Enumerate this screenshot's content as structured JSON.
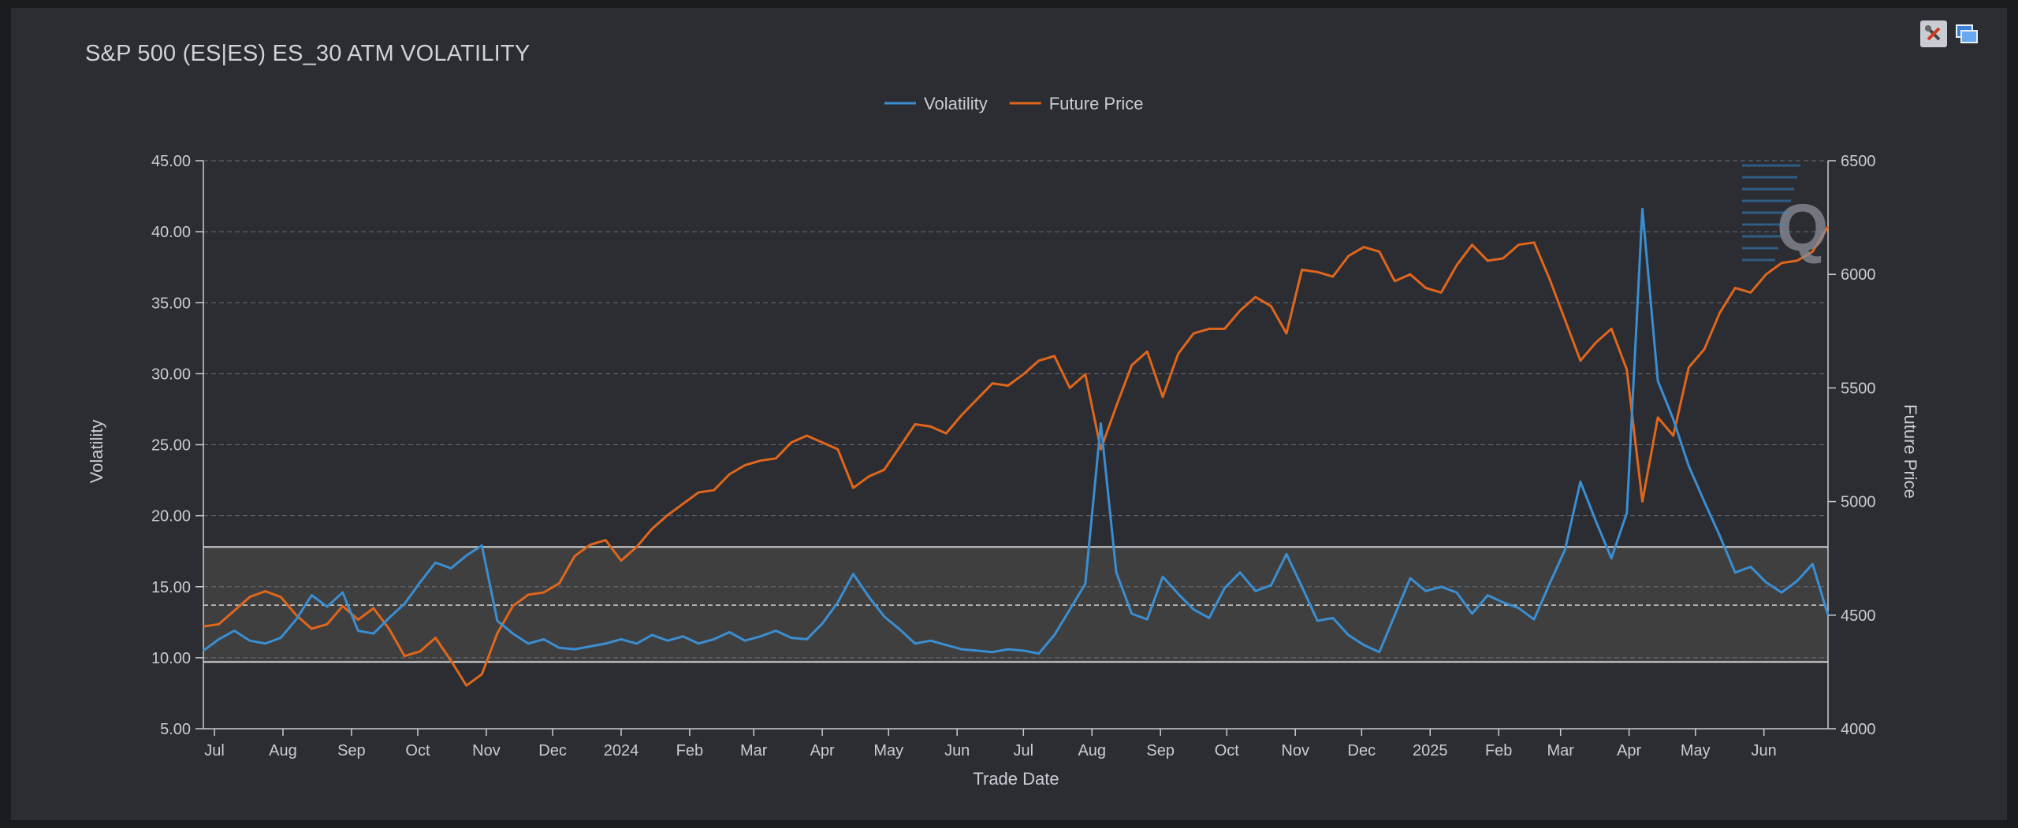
{
  "page": {
    "title": "S&P 500 (ES|ES) ES_30 ATM VOLATILITY"
  },
  "toolbar": {
    "settings_icon": "tools-icon",
    "window_icon": "window-icon"
  },
  "colors": {
    "volatility": "#3a8ed1",
    "future_price": "#e0661b",
    "band_fill": "#3f3f40",
    "grid": "#6a6e76",
    "text": "#c9ccd2"
  },
  "chart_data": {
    "type": "line",
    "title": "S&P 500 (ES|ES) ES_30 ATM VOLATILITY",
    "xlabel": "Trade Date",
    "ylabel": "Volatility",
    "y2label": "Future Price",
    "legend": {
      "position": "top-center",
      "entries": [
        "Volatility",
        "Future Price"
      ]
    },
    "grid": true,
    "x_range": [
      "2023-06-26",
      "2025-06-30"
    ],
    "ylim": [
      5,
      45
    ],
    "y2lim": [
      4000,
      6500
    ],
    "y_ticks": [
      "5.00",
      "10.00",
      "15.00",
      "20.00",
      "25.00",
      "30.00",
      "35.00",
      "40.00",
      "45.00"
    ],
    "y2_ticks": [
      "4000",
      "4500",
      "5000",
      "5500",
      "6000",
      "6500"
    ],
    "x_ticks": [
      {
        "label": "Jul",
        "date": "2023-07-01"
      },
      {
        "label": "Aug",
        "date": "2023-08-01"
      },
      {
        "label": "Sep",
        "date": "2023-09-01"
      },
      {
        "label": "Oct",
        "date": "2023-10-01"
      },
      {
        "label": "Nov",
        "date": "2023-11-01"
      },
      {
        "label": "Dec",
        "date": "2023-12-01"
      },
      {
        "label": "2024",
        "date": "2024-01-01"
      },
      {
        "label": "Feb",
        "date": "2024-02-01"
      },
      {
        "label": "Mar",
        "date": "2024-03-01"
      },
      {
        "label": "Apr",
        "date": "2024-04-01"
      },
      {
        "label": "May",
        "date": "2024-05-01"
      },
      {
        "label": "Jun",
        "date": "2024-06-01"
      },
      {
        "label": "Jul",
        "date": "2024-07-01"
      },
      {
        "label": "Aug",
        "date": "2024-08-01"
      },
      {
        "label": "Sep",
        "date": "2024-09-01"
      },
      {
        "label": "Oct",
        "date": "2024-10-01"
      },
      {
        "label": "Nov",
        "date": "2024-11-01"
      },
      {
        "label": "Dec",
        "date": "2024-12-01"
      },
      {
        "label": "2025",
        "date": "2025-01-01"
      },
      {
        "label": "Feb",
        "date": "2025-02-01"
      },
      {
        "label": "Mar",
        "date": "2025-03-01"
      },
      {
        "label": "Apr",
        "date": "2025-04-01"
      },
      {
        "label": "May",
        "date": "2025-05-01"
      },
      {
        "label": "Jun",
        "date": "2025-06-01"
      }
    ],
    "band": {
      "low": 9.7,
      "high": 17.8,
      "mid": 13.7
    },
    "series": [
      {
        "name": "Volatility",
        "axis": "left",
        "points": [
          [
            "2023-06-26",
            10.5
          ],
          [
            "2023-07-03",
            11.3
          ],
          [
            "2023-07-10",
            11.9
          ],
          [
            "2023-07-17",
            11.2
          ],
          [
            "2023-07-24",
            11.0
          ],
          [
            "2023-07-31",
            11.4
          ],
          [
            "2023-08-07",
            12.7
          ],
          [
            "2023-08-14",
            14.4
          ],
          [
            "2023-08-21",
            13.6
          ],
          [
            "2023-08-28",
            14.6
          ],
          [
            "2023-09-04",
            11.9
          ],
          [
            "2023-09-11",
            11.7
          ],
          [
            "2023-09-18",
            12.8
          ],
          [
            "2023-09-25",
            13.8
          ],
          [
            "2023-10-02",
            15.3
          ],
          [
            "2023-10-09",
            16.7
          ],
          [
            "2023-10-16",
            16.3
          ],
          [
            "2023-10-23",
            17.2
          ],
          [
            "2023-10-30",
            17.9
          ],
          [
            "2023-11-06",
            12.6
          ],
          [
            "2023-11-13",
            11.7
          ],
          [
            "2023-11-20",
            11.0
          ],
          [
            "2023-11-27",
            11.3
          ],
          [
            "2023-12-04",
            10.7
          ],
          [
            "2023-12-11",
            10.6
          ],
          [
            "2023-12-18",
            10.8
          ],
          [
            "2023-12-25",
            11.0
          ],
          [
            "2024-01-01",
            11.3
          ],
          [
            "2024-01-08",
            11.0
          ],
          [
            "2024-01-15",
            11.6
          ],
          [
            "2024-01-22",
            11.2
          ],
          [
            "2024-01-29",
            11.5
          ],
          [
            "2024-02-05",
            11.0
          ],
          [
            "2024-02-12",
            11.3
          ],
          [
            "2024-02-19",
            11.8
          ],
          [
            "2024-02-26",
            11.2
          ],
          [
            "2024-03-04",
            11.5
          ],
          [
            "2024-03-11",
            11.9
          ],
          [
            "2024-03-18",
            11.4
          ],
          [
            "2024-03-25",
            11.3
          ],
          [
            "2024-04-01",
            12.4
          ],
          [
            "2024-04-08",
            13.9
          ],
          [
            "2024-04-15",
            15.9
          ],
          [
            "2024-04-22",
            14.3
          ],
          [
            "2024-04-29",
            12.9
          ],
          [
            "2024-05-06",
            12.0
          ],
          [
            "2024-05-13",
            11.0
          ],
          [
            "2024-05-20",
            11.2
          ],
          [
            "2024-05-27",
            10.9
          ],
          [
            "2024-06-03",
            10.6
          ],
          [
            "2024-06-10",
            10.5
          ],
          [
            "2024-06-17",
            10.4
          ],
          [
            "2024-06-24",
            10.6
          ],
          [
            "2024-07-01",
            10.5
          ],
          [
            "2024-07-08",
            10.3
          ],
          [
            "2024-07-15",
            11.6
          ],
          [
            "2024-07-22",
            13.4
          ],
          [
            "2024-07-29",
            15.2
          ],
          [
            "2024-08-05",
            26.5
          ],
          [
            "2024-08-12",
            16.0
          ],
          [
            "2024-08-19",
            13.1
          ],
          [
            "2024-08-26",
            12.7
          ],
          [
            "2024-09-02",
            15.7
          ],
          [
            "2024-09-09",
            14.5
          ],
          [
            "2024-09-16",
            13.4
          ],
          [
            "2024-09-23",
            12.8
          ],
          [
            "2024-09-30",
            14.9
          ],
          [
            "2024-10-07",
            16.0
          ],
          [
            "2024-10-14",
            14.7
          ],
          [
            "2024-10-21",
            15.1
          ],
          [
            "2024-10-28",
            17.3
          ],
          [
            "2024-11-04",
            15.0
          ],
          [
            "2024-11-11",
            12.6
          ],
          [
            "2024-11-18",
            12.8
          ],
          [
            "2024-11-25",
            11.6
          ],
          [
            "2024-12-02",
            10.9
          ],
          [
            "2024-12-09",
            10.4
          ],
          [
            "2024-12-16",
            13.0
          ],
          [
            "2024-12-23",
            15.6
          ],
          [
            "2024-12-30",
            14.7
          ],
          [
            "2025-01-06",
            15.0
          ],
          [
            "2025-01-13",
            14.6
          ],
          [
            "2025-01-20",
            13.1
          ],
          [
            "2025-01-27",
            14.4
          ],
          [
            "2025-02-03",
            13.9
          ],
          [
            "2025-02-10",
            13.5
          ],
          [
            "2025-02-17",
            12.7
          ],
          [
            "2025-02-24",
            15.2
          ],
          [
            "2025-03-03",
            17.6
          ],
          [
            "2025-03-10",
            22.4
          ],
          [
            "2025-03-17",
            19.6
          ],
          [
            "2025-03-24",
            17.0
          ],
          [
            "2025-03-31",
            20.2
          ],
          [
            "2025-04-07",
            41.6
          ],
          [
            "2025-04-14",
            29.5
          ],
          [
            "2025-04-21",
            26.8
          ],
          [
            "2025-04-28",
            23.5
          ],
          [
            "2025-05-05",
            21.0
          ],
          [
            "2025-05-12",
            18.6
          ],
          [
            "2025-05-19",
            16.0
          ],
          [
            "2025-05-26",
            16.4
          ],
          [
            "2025-06-02",
            15.3
          ],
          [
            "2025-06-09",
            14.6
          ],
          [
            "2025-06-16",
            15.4
          ],
          [
            "2025-06-23",
            16.6
          ],
          [
            "2025-06-30",
            13.0
          ]
        ]
      },
      {
        "name": "Future Price",
        "axis": "right",
        "points": [
          [
            "2023-06-26",
            4450
          ],
          [
            "2023-07-03",
            4460
          ],
          [
            "2023-07-10",
            4520
          ],
          [
            "2023-07-17",
            4580
          ],
          [
            "2023-07-24",
            4605
          ],
          [
            "2023-07-31",
            4580
          ],
          [
            "2023-08-07",
            4500
          ],
          [
            "2023-08-14",
            4440
          ],
          [
            "2023-08-21",
            4460
          ],
          [
            "2023-08-28",
            4540
          ],
          [
            "2023-09-04",
            4480
          ],
          [
            "2023-09-11",
            4530
          ],
          [
            "2023-09-18",
            4440
          ],
          [
            "2023-09-25",
            4320
          ],
          [
            "2023-10-02",
            4340
          ],
          [
            "2023-10-09",
            4400
          ],
          [
            "2023-10-16",
            4300
          ],
          [
            "2023-10-23",
            4190
          ],
          [
            "2023-10-30",
            4240
          ],
          [
            "2023-11-06",
            4420
          ],
          [
            "2023-11-13",
            4540
          ],
          [
            "2023-11-20",
            4590
          ],
          [
            "2023-11-27",
            4600
          ],
          [
            "2023-12-04",
            4640
          ],
          [
            "2023-12-11",
            4760
          ],
          [
            "2023-12-18",
            4810
          ],
          [
            "2023-12-25",
            4830
          ],
          [
            "2024-01-01",
            4740
          ],
          [
            "2024-01-08",
            4800
          ],
          [
            "2024-01-15",
            4880
          ],
          [
            "2024-01-22",
            4940
          ],
          [
            "2024-01-29",
            4990
          ],
          [
            "2024-02-05",
            5040
          ],
          [
            "2024-02-12",
            5050
          ],
          [
            "2024-02-19",
            5120
          ],
          [
            "2024-02-26",
            5160
          ],
          [
            "2024-03-04",
            5180
          ],
          [
            "2024-03-11",
            5190
          ],
          [
            "2024-03-18",
            5260
          ],
          [
            "2024-03-25",
            5290
          ],
          [
            "2024-04-01",
            5260
          ],
          [
            "2024-04-08",
            5230
          ],
          [
            "2024-04-15",
            5060
          ],
          [
            "2024-04-22",
            5110
          ],
          [
            "2024-04-29",
            5140
          ],
          [
            "2024-05-06",
            5240
          ],
          [
            "2024-05-13",
            5340
          ],
          [
            "2024-05-20",
            5330
          ],
          [
            "2024-05-27",
            5300
          ],
          [
            "2024-06-03",
            5380
          ],
          [
            "2024-06-10",
            5450
          ],
          [
            "2024-06-17",
            5520
          ],
          [
            "2024-06-24",
            5510
          ],
          [
            "2024-07-01",
            5560
          ],
          [
            "2024-07-08",
            5620
          ],
          [
            "2024-07-15",
            5640
          ],
          [
            "2024-07-22",
            5500
          ],
          [
            "2024-07-29",
            5560
          ],
          [
            "2024-08-05",
            5230
          ],
          [
            "2024-08-12",
            5420
          ],
          [
            "2024-08-19",
            5600
          ],
          [
            "2024-08-26",
            5660
          ],
          [
            "2024-09-02",
            5460
          ],
          [
            "2024-09-09",
            5650
          ],
          [
            "2024-09-16",
            5740
          ],
          [
            "2024-09-23",
            5760
          ],
          [
            "2024-09-30",
            5760
          ],
          [
            "2024-10-07",
            5840
          ],
          [
            "2024-10-14",
            5900
          ],
          [
            "2024-10-21",
            5860
          ],
          [
            "2024-10-28",
            5740
          ],
          [
            "2024-11-04",
            6020
          ],
          [
            "2024-11-11",
            6010
          ],
          [
            "2024-11-18",
            5990
          ],
          [
            "2024-11-25",
            6080
          ],
          [
            "2024-12-02",
            6120
          ],
          [
            "2024-12-09",
            6100
          ],
          [
            "2024-12-16",
            5970
          ],
          [
            "2024-12-23",
            6000
          ],
          [
            "2024-12-30",
            5940
          ],
          [
            "2025-01-06",
            5920
          ],
          [
            "2025-01-13",
            6040
          ],
          [
            "2025-01-20",
            6130
          ],
          [
            "2025-01-27",
            6060
          ],
          [
            "2025-02-03",
            6070
          ],
          [
            "2025-02-10",
            6130
          ],
          [
            "2025-02-17",
            6140
          ],
          [
            "2025-02-24",
            5980
          ],
          [
            "2025-03-03",
            5800
          ],
          [
            "2025-03-10",
            5620
          ],
          [
            "2025-03-17",
            5700
          ],
          [
            "2025-03-24",
            5760
          ],
          [
            "2025-03-31",
            5580
          ],
          [
            "2025-04-07",
            5000
          ],
          [
            "2025-04-14",
            5370
          ],
          [
            "2025-04-21",
            5290
          ],
          [
            "2025-04-28",
            5590
          ],
          [
            "2025-05-05",
            5670
          ],
          [
            "2025-05-12",
            5830
          ],
          [
            "2025-05-19",
            5940
          ],
          [
            "2025-05-26",
            5920
          ],
          [
            "2025-06-02",
            6000
          ],
          [
            "2025-06-09",
            6050
          ],
          [
            "2025-06-16",
            6060
          ],
          [
            "2025-06-23",
            6100
          ],
          [
            "2025-06-30",
            6210
          ]
        ]
      }
    ]
  }
}
